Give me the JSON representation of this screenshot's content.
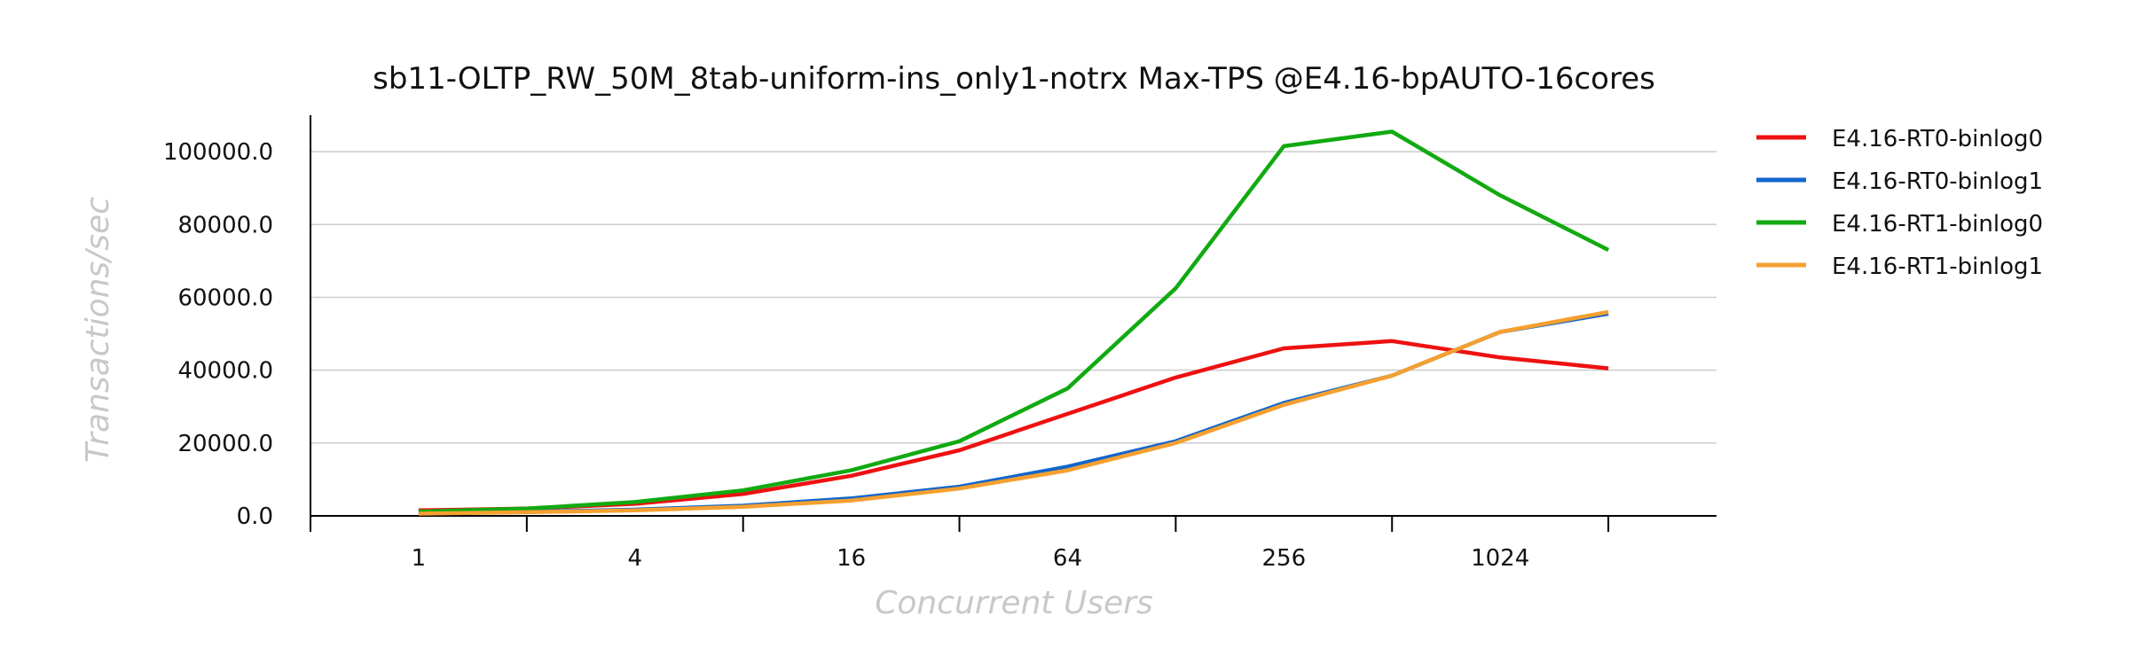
{
  "chart_data": {
    "type": "line",
    "title": "sb11-OLTP_RW_50M_8tab-uniform-ins_only1-notrx Max-TPS @E4.16-bpAUTO-16cores",
    "xlabel": "Concurrent Users",
    "ylabel": "Transactions/sec",
    "x_scale": "log2",
    "x": [
      1,
      2,
      4,
      8,
      16,
      32,
      64,
      128,
      256,
      512,
      1024,
      2048
    ],
    "x_tick_labels": [
      "1",
      "4",
      "16",
      "64",
      "256",
      "1024"
    ],
    "x_tick_values": [
      1,
      4,
      16,
      64,
      256,
      1024
    ],
    "x_minor_ticks": [
      0.5,
      2,
      8,
      32,
      128,
      512,
      2048
    ],
    "xlim": [
      0.5,
      4096
    ],
    "ylim": [
      0,
      110000
    ],
    "y_ticks": [
      0,
      20000,
      40000,
      60000,
      80000,
      100000
    ],
    "y_tick_labels": [
      "0.0",
      "20000.0",
      "40000.0",
      "60000.0",
      "80000.0",
      "100000.0"
    ],
    "grid": true,
    "legend_position": "right",
    "series": [
      {
        "name": "E4.16-RT0-binlog0",
        "color": "#ee1111",
        "values": [
          1500,
          2000,
          3300,
          6000,
          11000,
          18000,
          28000,
          38000,
          46000,
          48000,
          43500,
          40500
        ]
      },
      {
        "name": "E4.16-RT0-binlog1",
        "color": "#1166cc",
        "values": [
          700,
          1100,
          1700,
          2800,
          4800,
          8000,
          13500,
          20500,
          31000,
          38500,
          50500,
          55500
        ]
      },
      {
        "name": "E4.16-RT1-binlog0",
        "color": "#11aa11",
        "values": [
          1200,
          2000,
          3800,
          7000,
          12500,
          20500,
          35000,
          62500,
          101500,
          105500,
          88000,
          73000
        ]
      },
      {
        "name": "E4.16-RT1-binlog1",
        "color": "#f5a030",
        "values": [
          600,
          1000,
          1500,
          2500,
          4200,
          7500,
          12500,
          20000,
          30500,
          38500,
          50500,
          56000
        ]
      }
    ]
  }
}
